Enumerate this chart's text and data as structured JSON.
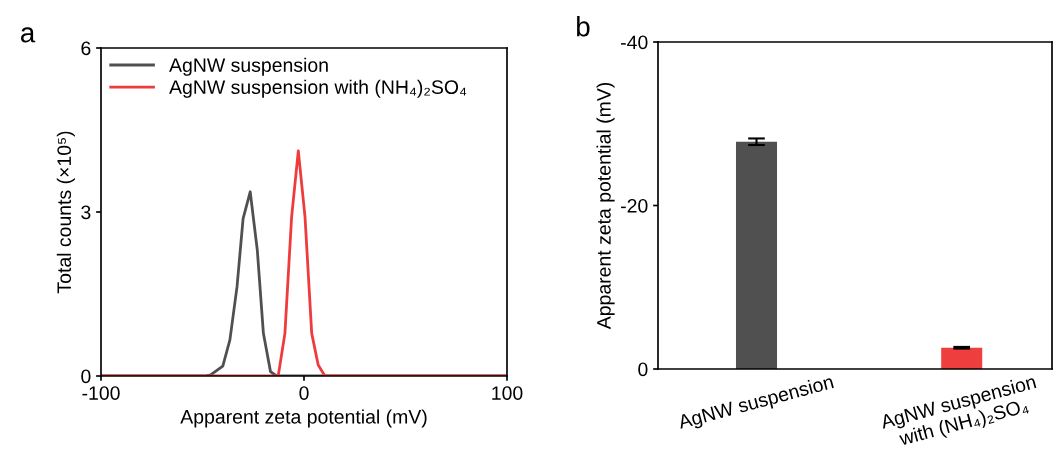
{
  "chart_data": [
    {
      "type": "line",
      "title": "a",
      "xlabel": "Apparent zeta potential (mV)",
      "ylabel": "Total counts (×10⁵)",
      "xlim": [
        -100,
        100
      ],
      "xticks": [
        {
          "value": -100,
          "label": "-100"
        },
        0,
        100
      ],
      "ylim": [
        0,
        6
      ],
      "yticks": [
        0,
        3,
        6
      ],
      "legend": "top left",
      "grid": false,
      "series": [
        {
          "name": "AgNW suspension",
          "color": "#505050",
          "x": [
            -100,
            -49,
            -46,
            -40,
            -36.5,
            -33,
            -30,
            -26.5,
            -23,
            -20,
            -16.5,
            -13.5,
            100
          ],
          "values": [
            0,
            0,
            0.02,
            0.18,
            0.66,
            1.63,
            2.88,
            3.37,
            2.3,
            0.78,
            0.08,
            0,
            0
          ]
        },
        {
          "name": "AgNW suspension with (NH₄)₂SO₄",
          "color": "#ee3b3b",
          "x": [
            -100,
            -12.7,
            -9.4,
            -6.1,
            -2.8,
            0.5,
            3.8,
            7,
            10.3,
            100
          ],
          "values": [
            0,
            0,
            0.78,
            2.91,
            4.12,
            2.91,
            0.78,
            0.2,
            0,
            0
          ]
        }
      ]
    },
    {
      "type": "bar",
      "title": "b",
      "ylabel": "Apparent zeta potential (mV)",
      "categories": [
        "AgNW suspension",
        "AgNW suspension\nwith (NH₄)₂SO₄"
      ],
      "values": [
        -27.8,
        -2.6
      ],
      "colors": [
        "#505050",
        "#ee3e3e"
      ],
      "errors": [
        0.4,
        0.1
      ],
      "ylim": [
        0,
        -40
      ],
      "yticks": [
        {
          "value": -40,
          "label": "-40"
        },
        {
          "value": -20,
          "label": "-20"
        },
        0
      ],
      "grid": false
    }
  ]
}
